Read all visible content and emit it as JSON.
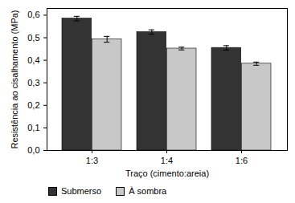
{
  "chart_data": {
    "type": "bar",
    "x_label": "Traço (cimento:areia)",
    "y_label": "Resistência ao cisalhamento (MPa)",
    "categories": [
      "1:3",
      "1:4",
      "1:6"
    ],
    "series": [
      {
        "name": "Submerso",
        "color": "#333333",
        "values": [
          0.585,
          0.525,
          0.455
        ],
        "errors": [
          0.01,
          0.01,
          0.01
        ]
      },
      {
        "name": "À sombra",
        "color": "#c8c8c8",
        "values": [
          0.493,
          0.452,
          0.385
        ],
        "errors": [
          0.013,
          0.006,
          0.007
        ]
      }
    ],
    "ylim": [
      0,
      0.63
    ],
    "yticks": [
      {
        "value": 0,
        "label": "0,0"
      },
      {
        "value": 0.1,
        "label": "0,1"
      },
      {
        "value": 0.2,
        "label": "0,2"
      },
      {
        "value": 0.3,
        "label": "0,3"
      },
      {
        "value": 0.4,
        "label": "0,4"
      },
      {
        "value": 0.5,
        "label": "0,5"
      },
      {
        "value": 0.6,
        "label": "0,6"
      }
    ],
    "grid": false,
    "legend": "bottom"
  }
}
